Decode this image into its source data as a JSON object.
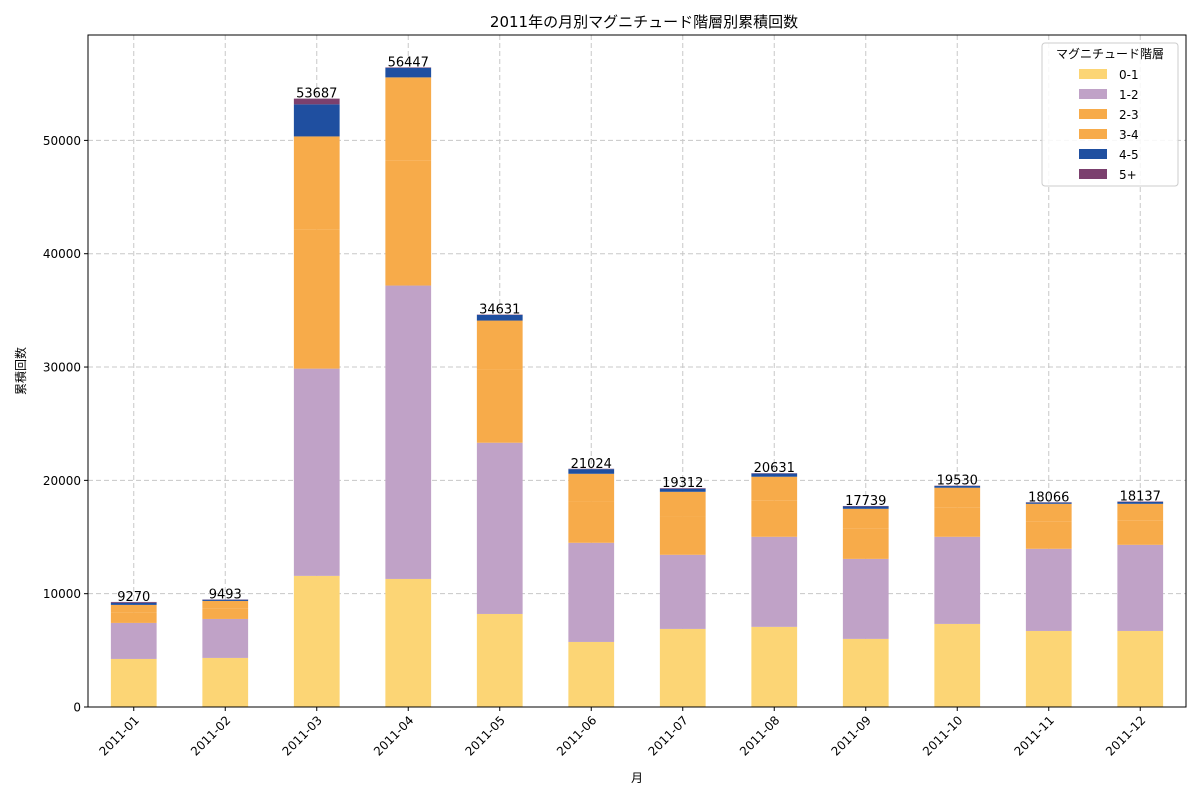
{
  "chart_data": {
    "type": "bar",
    "stacked": true,
    "title": "2011年の月別マグニチュード階層別累積回数",
    "xlabel": "月",
    "ylabel": "累積回数",
    "ylim": [
      0,
      59300
    ],
    "yticks": [
      0,
      10000,
      20000,
      30000,
      40000,
      50000
    ],
    "grid": true,
    "legend_title": "マグニチュード階層",
    "legend_placement": "top-right",
    "categories": [
      "2011-01",
      "2011-02",
      "2011-03",
      "2011-04",
      "2011-05",
      "2011-06",
      "2011-07",
      "2011-08",
      "2011-09",
      "2011-10",
      "2011-11",
      "2011-12"
    ],
    "series": [
      {
        "name": "0-1",
        "color": "#fcd575",
        "values": [
          4240,
          4330,
          11570,
          11300,
          8210,
          5740,
          6890,
          7070,
          6010,
          7330,
          6710,
          6710
        ]
      },
      {
        "name": "1-2",
        "color": "#c0a2c7",
        "values": [
          3180,
          3440,
          18290,
          25890,
          15110,
          8750,
          6540,
          7950,
          7060,
          7690,
          7250,
          7600
        ]
      },
      {
        "name": "2-3",
        "color": "#f7ab4a",
        "values": [
          950,
          950,
          12290,
          11020,
          6470,
          3650,
          3340,
          3180,
          2650,
          2600,
          2380,
          2170
        ]
      },
      {
        "name": "3-4",
        "color": "#f7ab4a",
        "values": [
          640,
          640,
          8200,
          7350,
          4310,
          2440,
          2220,
          2120,
          1770,
          1730,
          1590,
          1450
        ]
      },
      {
        "name": "4-5",
        "color": "#1f4fa0",
        "values": [
          190,
          110,
          2830,
          847,
          500,
          410,
          270,
          280,
          210,
          150,
          110,
          170
        ]
      },
      {
        "name": "5+",
        "color": "#7b406e",
        "values": [
          70,
          23,
          507,
          40,
          31,
          34,
          52,
          31,
          39,
          30,
          26,
          37
        ]
      }
    ],
    "totals": [
      9270,
      9493,
      53687,
      56447,
      34631,
      21024,
      19312,
      20631,
      17739,
      19530,
      18066,
      18137
    ]
  }
}
